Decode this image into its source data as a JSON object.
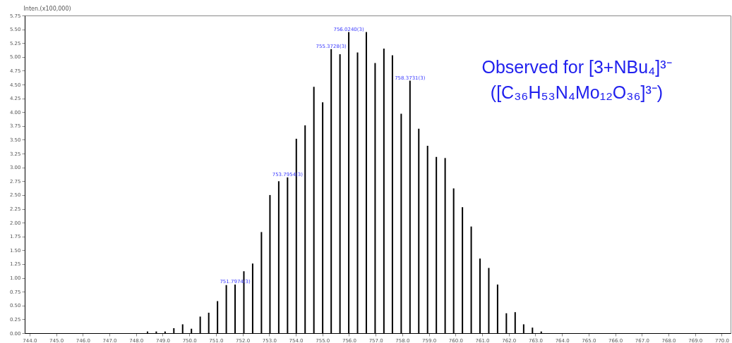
{
  "chart_data": {
    "type": "bar",
    "ylabel": "Inten.(x100,000)",
    "x": [
      748.43,
      748.76,
      749.09,
      749.42,
      749.75,
      750.08,
      750.41,
      750.73,
      751.06,
      751.39,
      751.72,
      752.05,
      752.38,
      752.71,
      753.03,
      753.36,
      753.69,
      754.02,
      754.35,
      754.68,
      755.01,
      755.33,
      755.66,
      755.99,
      756.32,
      756.65,
      756.98,
      757.31,
      757.63,
      757.96,
      758.29,
      758.62,
      758.95,
      759.28,
      759.61,
      759.93,
      760.26,
      760.59,
      760.92,
      761.25,
      761.58,
      761.91,
      762.24,
      762.56,
      762.89,
      763.22
    ],
    "values": [
      0.03,
      0.03,
      0.03,
      0.09,
      0.16,
      0.08,
      0.3,
      0.37,
      0.58,
      0.87,
      0.88,
      1.12,
      1.26,
      1.83,
      2.5,
      2.75,
      2.82,
      3.52,
      3.76,
      4.46,
      4.18,
      5.14,
      5.05,
      5.45,
      5.08,
      5.45,
      4.89,
      5.15,
      5.03,
      3.97,
      4.57,
      3.7,
      3.39,
      3.19,
      3.17,
      2.62,
      2.28,
      1.93,
      1.35,
      1.18,
      0.88,
      0.36,
      0.38,
      0.16,
      0.1,
      0.03
    ],
    "color": "#000000",
    "xlim": [
      743.95,
      770.2
    ],
    "xticks": [
      {
        "value": 744,
        "label": "744.0"
      },
      {
        "value": 745,
        "label": "745.0"
      },
      {
        "value": 746,
        "label": "746.0"
      },
      {
        "value": 747,
        "label": "747.0"
      },
      {
        "value": 748,
        "label": "748.0"
      },
      {
        "value": 749,
        "label": "749.0"
      },
      {
        "value": 750,
        "label": "750.0"
      },
      {
        "value": 751,
        "label": "751.0"
      },
      {
        "value": 752,
        "label": "752.0"
      },
      {
        "value": 753,
        "label": "753.0"
      },
      {
        "value": 754,
        "label": "754.0"
      },
      {
        "value": 755,
        "label": "755.0"
      },
      {
        "value": 756,
        "label": "756.0"
      },
      {
        "value": 757,
        "label": "757.0"
      },
      {
        "value": 758,
        "label": "758.0"
      },
      {
        "value": 759,
        "label": "759.0"
      },
      {
        "value": 760,
        "label": "760.0"
      },
      {
        "value": 761,
        "label": "761.0"
      },
      {
        "value": 762,
        "label": "762.0"
      },
      {
        "value": 763,
        "label": "763.0"
      },
      {
        "value": 764,
        "label": "764.0"
      },
      {
        "value": 765,
        "label": "765.0"
      },
      {
        "value": 766,
        "label": "766.0"
      },
      {
        "value": 767,
        "label": "767.0"
      },
      {
        "value": 768,
        "label": "768.0"
      },
      {
        "value": 769,
        "label": "769.0"
      },
      {
        "value": 770,
        "label": "770.0"
      }
    ],
    "ylim": [
      0,
      5.75
    ],
    "yticks": [
      {
        "value": 0,
        "label": "0.00"
      },
      0.25,
      {
        "value": 0.5,
        "label": "0.50"
      },
      0.75,
      {
        "value": 1,
        "label": "1.00"
      },
      1.25,
      {
        "value": 1.5,
        "label": "1.50"
      },
      1.75,
      {
        "value": 2,
        "label": "2.00"
      },
      2.25,
      {
        "value": 2.5,
        "label": "2.50"
      },
      2.75,
      {
        "value": 3,
        "label": "3.00"
      },
      3.25,
      {
        "value": 3.5,
        "label": "3.50"
      },
      3.75,
      {
        "value": 4,
        "label": "4.00"
      },
      4.25,
      {
        "value": 4.5,
        "label": "4.50"
      },
      4.75,
      {
        "value": 5,
        "label": "5.00"
      },
      5.25,
      {
        "value": 5.5,
        "label": "5.50"
      },
      5.75
    ],
    "grid": false,
    "annotations": [
      {
        "text": "751.7974(3)",
        "x": 751.72,
        "y": 0.88
      },
      {
        "text": "753.7954(3)",
        "x": 753.69,
        "y": 2.82
      },
      {
        "text": "755.3728(3)",
        "x": 755.33,
        "y": 5.14
      },
      {
        "text": "756.0240(3)",
        "x": 755.99,
        "y": 5.45
      },
      {
        "text": "758.3731(3)",
        "x": 758.29,
        "y": 4.57
      },
      "Observed for [3+NBu₄]³⁻",
      "([C₃₆H₅₃N₄Mo₁₂O₃₆]³⁻)"
    ]
  }
}
